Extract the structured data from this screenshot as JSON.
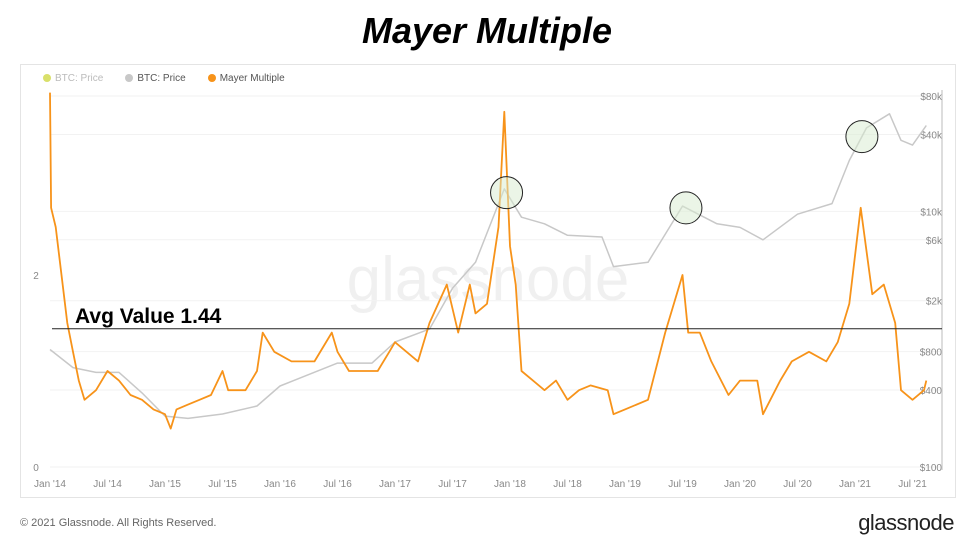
{
  "title": "Mayer Multiple",
  "legend": [
    {
      "label": "BTC: Price",
      "color": "#d9e06a",
      "muted": true
    },
    {
      "label": "BTC: Price",
      "color": "#c8c8c8",
      "muted": false
    },
    {
      "label": "Mayer Multiple",
      "color": "#f7931a",
      "muted": false
    }
  ],
  "watermark": "glassnode",
  "footer": "© 2021 Glassnode. All Rights Reserved.",
  "brand": "glassnode",
  "chart_data": {
    "type": "line",
    "title": "Mayer Multiple",
    "x_range": [
      2014.0,
      2021.62
    ],
    "x_ticks": [
      {
        "v": 2014.0,
        "l": "Jan '14"
      },
      {
        "v": 2014.5,
        "l": "Jul '14"
      },
      {
        "v": 2015.0,
        "l": "Jan '15"
      },
      {
        "v": 2015.5,
        "l": "Jul '15"
      },
      {
        "v": 2016.0,
        "l": "Jan '16"
      },
      {
        "v": 2016.5,
        "l": "Jul '16"
      },
      {
        "v": 2017.0,
        "l": "Jan '17"
      },
      {
        "v": 2017.5,
        "l": "Jul '17"
      },
      {
        "v": 2018.0,
        "l": "Jan '18"
      },
      {
        "v": 2018.5,
        "l": "Jul '18"
      },
      {
        "v": 2019.0,
        "l": "Jan '19"
      },
      {
        "v": 2019.5,
        "l": "Jul '19"
      },
      {
        "v": 2020.0,
        "l": "Jan '20"
      },
      {
        "v": 2020.5,
        "l": "Jul '20"
      },
      {
        "v": 2021.0,
        "l": "Jan '21"
      },
      {
        "v": 2021.5,
        "l": "Jul '21"
      }
    ],
    "left_axis": {
      "ticks": [
        {
          "v": 0,
          "l": "0"
        },
        {
          "v": 2,
          "l": "2"
        }
      ],
      "range": [
        0,
        4
      ]
    },
    "right_axis": {
      "scale": "log",
      "range": [
        100,
        80000
      ],
      "ticks": [
        {
          "v": 100,
          "l": "$100"
        },
        {
          "v": 400,
          "l": "$400"
        },
        {
          "v": 800,
          "l": "$800"
        },
        {
          "v": 2000,
          "l": "$2k"
        },
        {
          "v": 6000,
          "l": "$6k"
        },
        {
          "v": 10000,
          "l": "$10k"
        },
        {
          "v": 40000,
          "l": "$40k"
        },
        {
          "v": 80000,
          "l": "$80k"
        }
      ]
    },
    "annotation": {
      "label": "Avg Value 1.44",
      "value": 1.44
    },
    "highlighted_peaks": [
      2017.97,
      2019.53,
      2021.06
    ],
    "series": [
      {
        "name": "Mayer Multiple",
        "axis": "left",
        "color": "#f7931a",
        "points": [
          [
            2014.0,
            3.9
          ],
          [
            2014.01,
            2.7
          ],
          [
            2014.05,
            2.5
          ],
          [
            2014.1,
            2.0
          ],
          [
            2014.15,
            1.5
          ],
          [
            2014.2,
            1.2
          ],
          [
            2014.25,
            0.9
          ],
          [
            2014.3,
            0.7
          ],
          [
            2014.4,
            0.8
          ],
          [
            2014.5,
            1.0
          ],
          [
            2014.6,
            0.9
          ],
          [
            2014.7,
            0.75
          ],
          [
            2014.8,
            0.7
          ],
          [
            2014.9,
            0.6
          ],
          [
            2015.0,
            0.55
          ],
          [
            2015.05,
            0.4
          ],
          [
            2015.1,
            0.6
          ],
          [
            2015.2,
            0.65
          ],
          [
            2015.3,
            0.7
          ],
          [
            2015.4,
            0.75
          ],
          [
            2015.5,
            1.0
          ],
          [
            2015.55,
            0.8
          ],
          [
            2015.7,
            0.8
          ],
          [
            2015.8,
            1.0
          ],
          [
            2015.85,
            1.4
          ],
          [
            2015.95,
            1.2
          ],
          [
            2016.1,
            1.1
          ],
          [
            2016.3,
            1.1
          ],
          [
            2016.45,
            1.4
          ],
          [
            2016.5,
            1.2
          ],
          [
            2016.6,
            1.0
          ],
          [
            2016.7,
            1.0
          ],
          [
            2016.85,
            1.0
          ],
          [
            2016.95,
            1.2
          ],
          [
            2017.0,
            1.3
          ],
          [
            2017.1,
            1.2
          ],
          [
            2017.2,
            1.1
          ],
          [
            2017.3,
            1.5
          ],
          [
            2017.45,
            1.9
          ],
          [
            2017.55,
            1.4
          ],
          [
            2017.65,
            1.9
          ],
          [
            2017.7,
            1.6
          ],
          [
            2017.8,
            1.7
          ],
          [
            2017.9,
            2.5
          ],
          [
            2017.95,
            3.7
          ],
          [
            2018.0,
            2.3
          ],
          [
            2018.05,
            1.9
          ],
          [
            2018.1,
            1.0
          ],
          [
            2018.2,
            0.9
          ],
          [
            2018.3,
            0.8
          ],
          [
            2018.4,
            0.9
          ],
          [
            2018.5,
            0.7
          ],
          [
            2018.6,
            0.8
          ],
          [
            2018.7,
            0.85
          ],
          [
            2018.85,
            0.8
          ],
          [
            2018.9,
            0.55
          ],
          [
            2019.0,
            0.6
          ],
          [
            2019.2,
            0.7
          ],
          [
            2019.35,
            1.4
          ],
          [
            2019.5,
            2.0
          ],
          [
            2019.55,
            1.4
          ],
          [
            2019.65,
            1.4
          ],
          [
            2019.75,
            1.1
          ],
          [
            2019.9,
            0.75
          ],
          [
            2020.0,
            0.9
          ],
          [
            2020.15,
            0.9
          ],
          [
            2020.2,
            0.55
          ],
          [
            2020.35,
            0.9
          ],
          [
            2020.45,
            1.1
          ],
          [
            2020.6,
            1.2
          ],
          [
            2020.75,
            1.1
          ],
          [
            2020.85,
            1.3
          ],
          [
            2020.95,
            1.7
          ],
          [
            2021.05,
            2.7
          ],
          [
            2021.15,
            1.8
          ],
          [
            2021.25,
            1.9
          ],
          [
            2021.35,
            1.5
          ],
          [
            2021.4,
            0.8
          ],
          [
            2021.5,
            0.7
          ],
          [
            2021.6,
            0.8
          ],
          [
            2021.62,
            0.9
          ]
        ]
      },
      {
        "name": "BTC: Price",
        "axis": "right",
        "color": "#c8c8c8",
        "points": [
          [
            2014.0,
            830
          ],
          [
            2014.2,
            600
          ],
          [
            2014.4,
            550
          ],
          [
            2014.6,
            550
          ],
          [
            2014.8,
            380
          ],
          [
            2015.0,
            250
          ],
          [
            2015.2,
            240
          ],
          [
            2015.5,
            260
          ],
          [
            2015.8,
            300
          ],
          [
            2016.0,
            430
          ],
          [
            2016.5,
            650
          ],
          [
            2016.8,
            650
          ],
          [
            2017.0,
            950
          ],
          [
            2017.3,
            1200
          ],
          [
            2017.5,
            2500
          ],
          [
            2017.7,
            4000
          ],
          [
            2017.95,
            15000
          ],
          [
            2018.1,
            9000
          ],
          [
            2018.3,
            8000
          ],
          [
            2018.5,
            6500
          ],
          [
            2018.8,
            6300
          ],
          [
            2018.9,
            3700
          ],
          [
            2019.2,
            4000
          ],
          [
            2019.5,
            11000
          ],
          [
            2019.8,
            8000
          ],
          [
            2020.0,
            7500
          ],
          [
            2020.2,
            6000
          ],
          [
            2020.5,
            9500
          ],
          [
            2020.8,
            11500
          ],
          [
            2020.95,
            25000
          ],
          [
            2021.1,
            45000
          ],
          [
            2021.3,
            58000
          ],
          [
            2021.4,
            36000
          ],
          [
            2021.5,
            33000
          ],
          [
            2021.62,
            47000
          ]
        ]
      }
    ]
  }
}
